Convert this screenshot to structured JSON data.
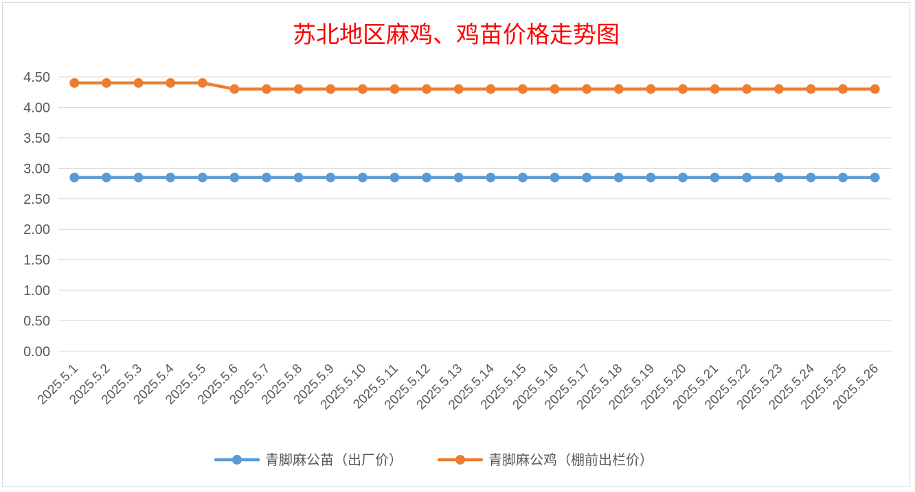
{
  "chart_data": {
    "type": "line",
    "title": "苏北地区麻鸡、鸡苗价格走势图",
    "xlabel": "",
    "ylabel": "",
    "x": [
      "2025.5.1",
      "2025.5.2",
      "2025.5.3",
      "2025.5.4",
      "2025.5.5",
      "2025.5.6",
      "2025.5.7",
      "2025.5.8",
      "2025.5.9",
      "2025.5.10",
      "2025.5.11",
      "2025.5.12",
      "2025.5.13",
      "2025.5.14",
      "2025.5.15",
      "2025.5.16",
      "2025.5.17",
      "2025.5.18",
      "2025.5.19",
      "2025.5.20",
      "2025.5.21",
      "2025.5.22",
      "2025.5.23",
      "2025.5.24",
      "2025.5.25",
      "2025.5.26"
    ],
    "ylim": [
      0,
      4.5
    ],
    "yticks": [
      "0.00",
      "0.50",
      "1.00",
      "1.50",
      "2.00",
      "2.50",
      "3.00",
      "3.50",
      "4.00",
      "4.50"
    ],
    "grid": true,
    "legend_position": "bottom",
    "series": [
      {
        "name": "青脚麻公苗（出厂价）",
        "color": "#5b9bd5",
        "values": [
          2.85,
          2.85,
          2.85,
          2.85,
          2.85,
          2.85,
          2.85,
          2.85,
          2.85,
          2.85,
          2.85,
          2.85,
          2.85,
          2.85,
          2.85,
          2.85,
          2.85,
          2.85,
          2.85,
          2.85,
          2.85,
          2.85,
          2.85,
          2.85,
          2.85,
          2.85
        ]
      },
      {
        "name": "青脚麻公鸡（棚前出栏价）",
        "color": "#ed7d31",
        "values": [
          4.4,
          4.4,
          4.4,
          4.4,
          4.4,
          4.3,
          4.3,
          4.3,
          4.3,
          4.3,
          4.3,
          4.3,
          4.3,
          4.3,
          4.3,
          4.3,
          4.3,
          4.3,
          4.3,
          4.3,
          4.3,
          4.3,
          4.3,
          4.3,
          4.3,
          4.3
        ]
      }
    ]
  }
}
